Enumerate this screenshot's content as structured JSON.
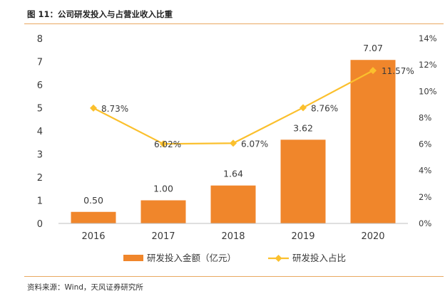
{
  "figure": {
    "title": "图 11：公司研发投入与占营业收入比重",
    "source": "资料来源：Wind，天风证券研究所"
  },
  "colors": {
    "bar": "#f0862b",
    "line": "#fbc02d",
    "rule": "#e9a860",
    "text": "#3a3a3a"
  },
  "chart_data": {
    "type": "bar",
    "categories": [
      "2016",
      "2017",
      "2018",
      "2019",
      "2020"
    ],
    "series": [
      {
        "name": "研发投入金额（亿元）",
        "type": "bar",
        "axis": "left",
        "values": [
          0.5,
          1.0,
          1.64,
          3.62,
          7.07
        ],
        "labels": [
          "0.50",
          "1.00",
          "1.64",
          "3.62",
          "7.07"
        ]
      },
      {
        "name": "研发投入占比",
        "type": "line",
        "axis": "right",
        "values": [
          8.73,
          6.02,
          6.07,
          8.76,
          11.57
        ],
        "labels": [
          "8.73%",
          "6.02%",
          "6.07%",
          "8.76%",
          "11.57%"
        ]
      }
    ],
    "ylim_left": [
      0,
      8
    ],
    "yticks_left": [
      "0",
      "1",
      "2",
      "3",
      "4",
      "5",
      "6",
      "7",
      "8"
    ],
    "ylim_right": [
      0,
      14
    ],
    "yticks_right": [
      "0%",
      "2%",
      "4%",
      "6%",
      "8%",
      "10%",
      "12%",
      "14%"
    ],
    "grid": false,
    "legend": "bottom"
  }
}
